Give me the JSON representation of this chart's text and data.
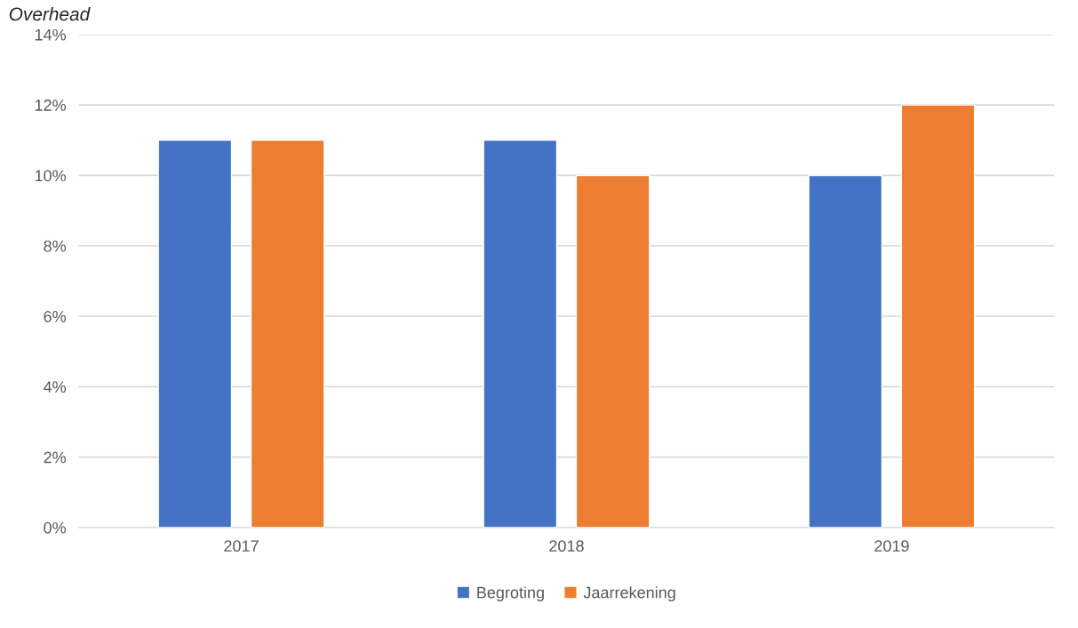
{
  "chart_data": {
    "type": "bar",
    "title": "Overhead",
    "categories": [
      "2017",
      "2018",
      "2019"
    ],
    "series": [
      {
        "name": "Begroting",
        "color": "#4472c4",
        "values": [
          11,
          11,
          10
        ]
      },
      {
        "name": "Jaarrekening",
        "color": "#ed7d31",
        "values": [
          11,
          10,
          12
        ]
      }
    ],
    "ylim": [
      0,
      14
    ],
    "yticks": [
      {
        "value": 0,
        "label": "0%"
      },
      {
        "value": 2,
        "label": "2%"
      },
      {
        "value": 4,
        "label": "4%"
      },
      {
        "value": 6,
        "label": "6%"
      },
      {
        "value": 8,
        "label": "8%"
      },
      {
        "value": 10,
        "label": "10%"
      },
      {
        "value": 12,
        "label": "12%"
      },
      {
        "value": 14,
        "label": "14%"
      }
    ],
    "grid": "y",
    "legend": "bottom"
  }
}
